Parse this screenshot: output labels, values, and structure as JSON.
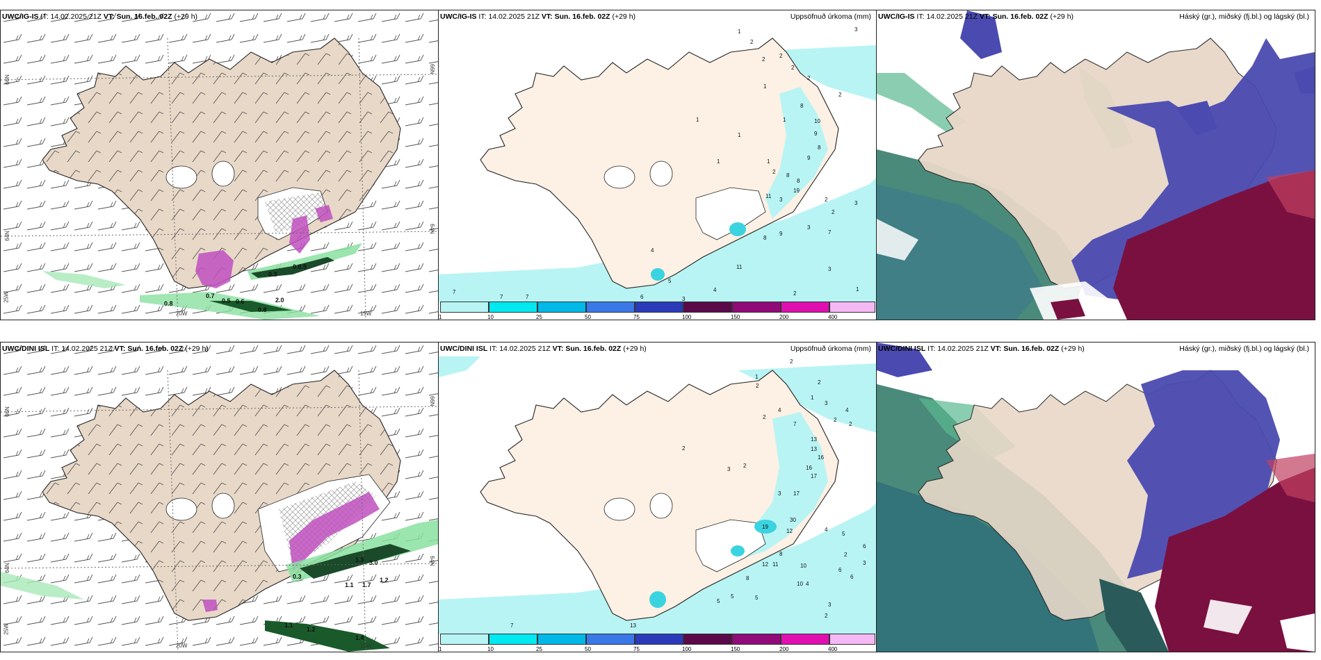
{
  "run": {
    "it_label": "IT:",
    "it_value": "14.02.2025 21Z",
    "vt_label": "VT:",
    "vt_value": "Sun. 16.feb. 02Z",
    "lead": "(+29 h)"
  },
  "rows": [
    {
      "model": "UWC/IG-IS",
      "panels": {
        "wind": {
          "lat_left": "66N",
          "lat_right": "66N",
          "lat_left2": "64N",
          "lat_right2": "64N",
          "lon_left": "25W",
          "lon_x1": "20W",
          "lon_x2": "15W"
        },
        "precip": {
          "title": "Uppsöfnuð úrkoma (mm)"
        },
        "cloud": {
          "title": "Háský (gr.), miðský (fj.bl.) og lágský (bl.)"
        }
      }
    },
    {
      "model": "UWC/DINI ISL",
      "panels": {
        "wind": {
          "lat_left": "66N",
          "lat_right": "66N",
          "lat_left2": "64N",
          "lat_right2": "64N",
          "lon_left": "25W",
          "lon_x1": "20W",
          "lon_x2": "15W"
        },
        "precip": {
          "title": "Uppsöfnuð úrkoma (mm)"
        },
        "cloud": {
          "title": "Háský (gr.), miðský (fj.bl.) og lágský (bl.)"
        }
      }
    }
  ],
  "colorbar": {
    "ticks": [
      "1",
      "10",
      "25",
      "50",
      "75",
      "100",
      "150",
      "200",
      "400"
    ],
    "colors": [
      "#b8f4f4",
      "#00e8f0",
      "#00b8e8",
      "#3a78e8",
      "#2a3ab8",
      "#5a0a48",
      "#900a78",
      "#e010b0",
      "#f4b8f4"
    ]
  },
  "wind_labels": {
    "top": [
      "0.8",
      "0.5",
      "0.6",
      "0.7",
      "0.8",
      "2.0",
      "0.3",
      "0.8.5"
    ],
    "bottom": [
      "1.1",
      "1.2",
      "1.4",
      "1.1",
      "1.7",
      "1.2",
      "1.3",
      "3.0",
      "0.3"
    ]
  },
  "precip_values": {
    "top": [
      "3",
      "1",
      "2",
      "2",
      "2",
      "2",
      "2",
      "2",
      "1",
      "8",
      "10",
      "9",
      "8",
      "9",
      "8",
      "1",
      "1",
      "1",
      "1",
      "2",
      "8",
      "1",
      "19",
      "11",
      "3",
      "2",
      "3",
      "2",
      "3",
      "7",
      "9",
      "8",
      "4",
      "11",
      "3",
      "1",
      "2",
      "4",
      "5",
      "6",
      "3",
      "7",
      "7",
      "7"
    ],
    "bottom": [
      "2",
      "1",
      "2",
      "2",
      "1",
      "3",
      "4",
      "7",
      "2",
      "2",
      "4",
      "2",
      "13",
      "13",
      "16",
      "16",
      "17",
      "17",
      "2",
      "3",
      "2",
      "3",
      "19",
      "30",
      "12",
      "10",
      "4",
      "5",
      "3",
      "6",
      "8",
      "12",
      "11",
      "10",
      "5",
      "5",
      "4",
      "3",
      "2",
      "13",
      "5",
      "7",
      "2",
      "6",
      "6",
      "8"
    ]
  },
  "colors": {
    "land": "#efe0d0",
    "snow_land": "#ffffff",
    "precip_light": "#b8f4f4",
    "hail_magenta": "#c050c0",
    "green_precip": "#1a5a2a",
    "high_cloud": "#4a8a7a",
    "mid_cloud": "#4a4ab0",
    "low_cloud": "#7a1040"
  }
}
